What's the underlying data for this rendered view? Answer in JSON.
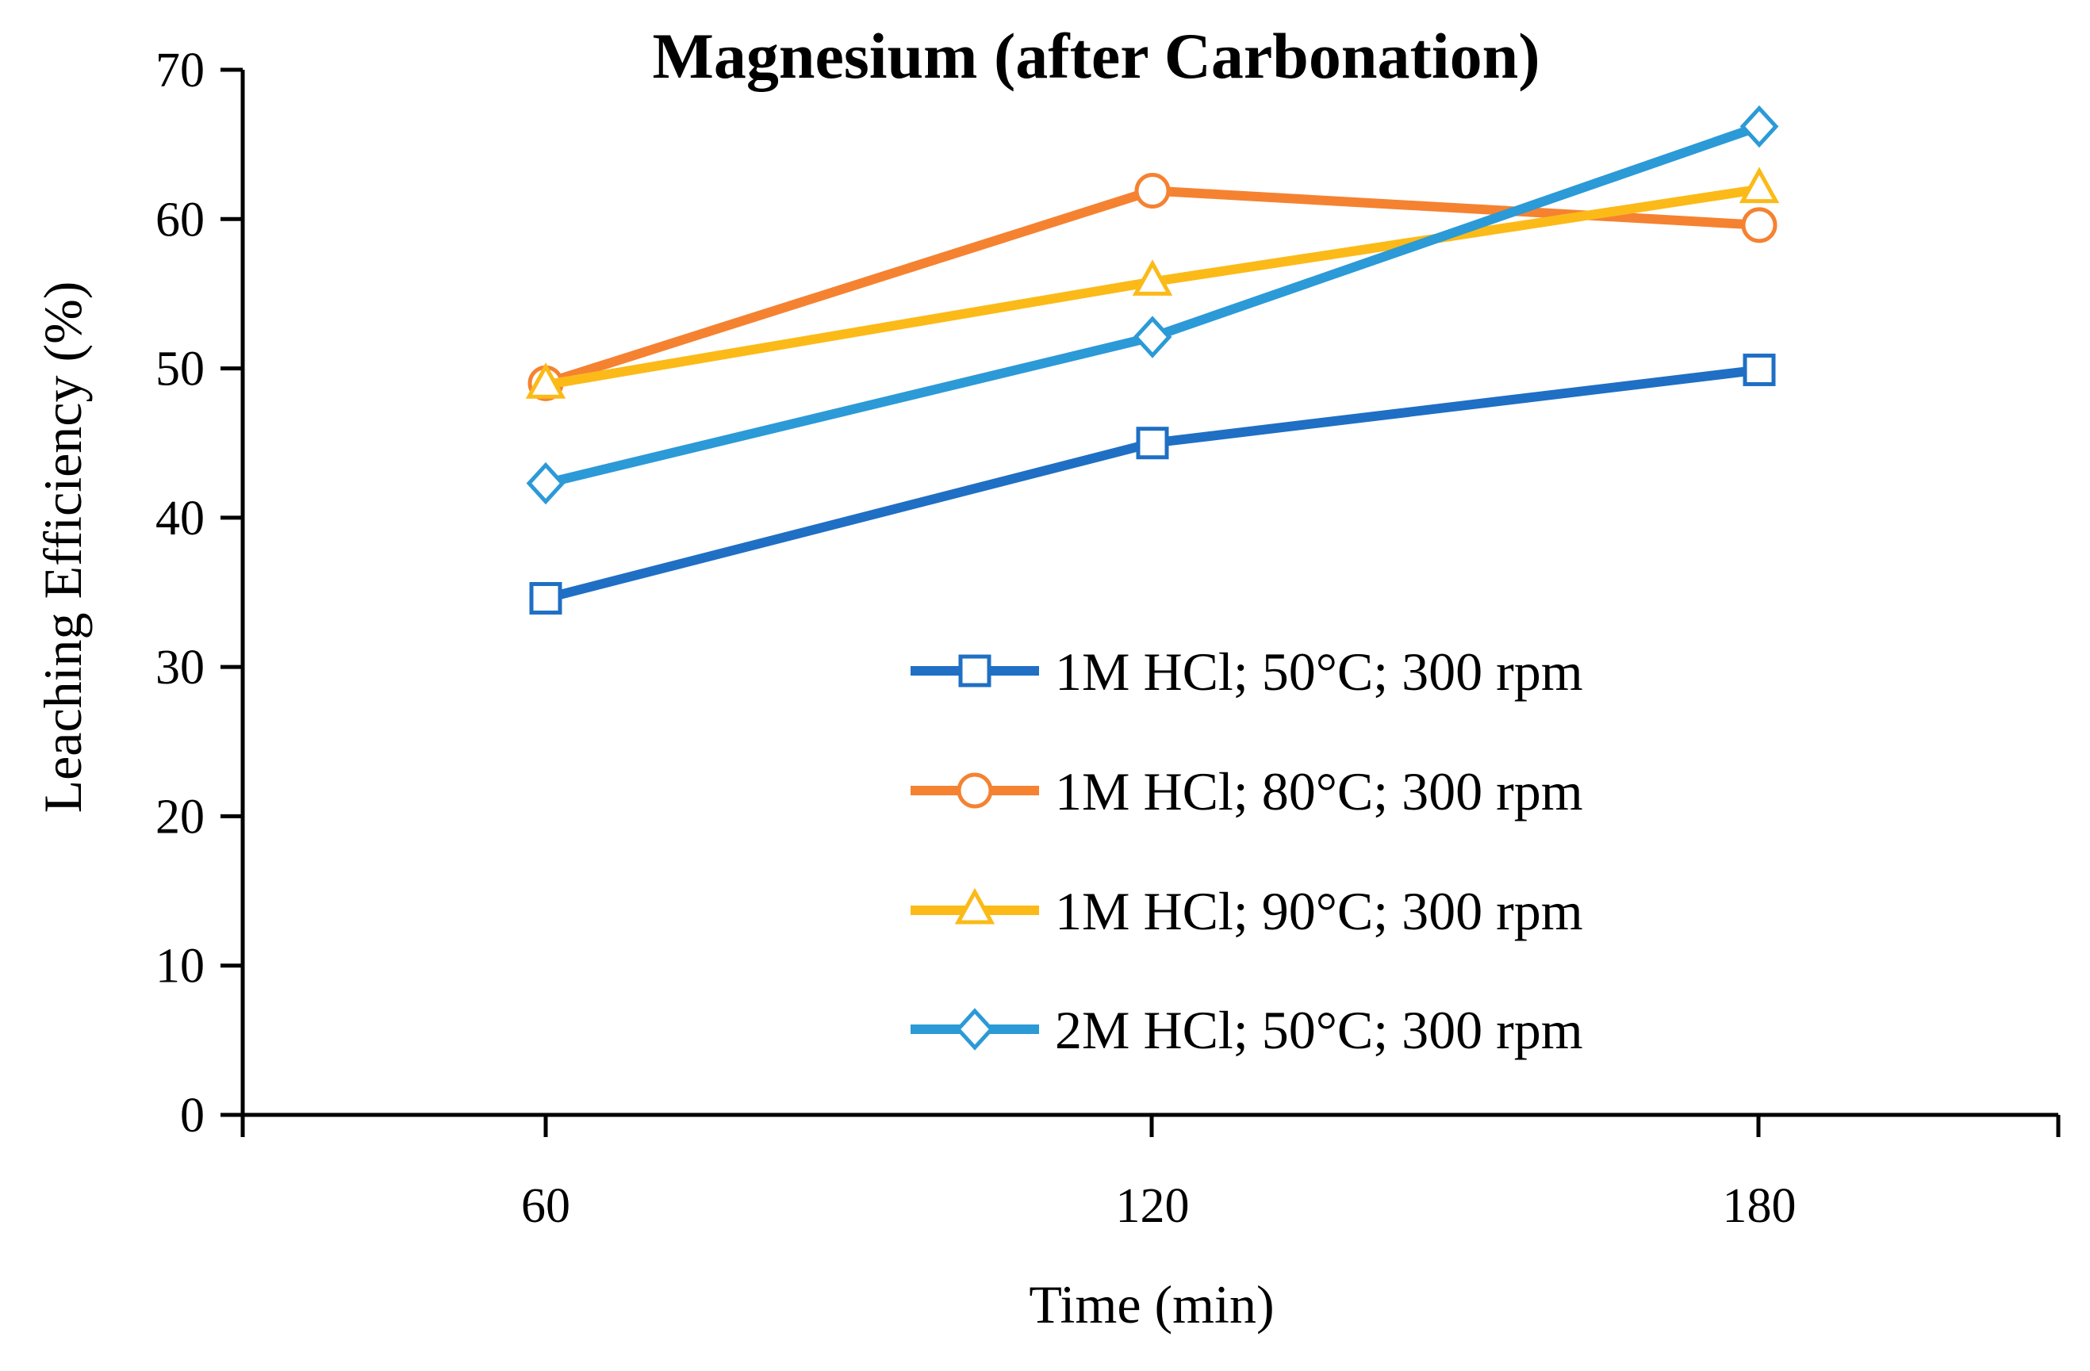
{
  "chart_data": {
    "type": "line",
    "title": "Magnesium (after Carbonation)",
    "xlabel": "Time (min)",
    "ylabel": "Leaching Efficiency (%)",
    "categories": [
      "60",
      "120",
      "180"
    ],
    "x": [
      60,
      120,
      180
    ],
    "ylim": [
      0,
      70
    ],
    "yticks": [
      "0",
      "10",
      "20",
      "30",
      "40",
      "50",
      "60",
      "70"
    ],
    "grid": false,
    "legend_position": "bottom-right",
    "series": [
      {
        "name": "1M HCl; 50°C; 300 rpm",
        "color": "#1F6FC4",
        "marker": "square",
        "values": [
          34.6,
          45.0,
          49.9
        ]
      },
      {
        "name": "1M HCl; 80°C; 300 rpm",
        "color": "#F58231",
        "marker": "circle",
        "values": [
          49.0,
          61.9,
          59.6
        ]
      },
      {
        "name": "1M HCl; 90°C; 300 rpm",
        "color": "#FBBA18",
        "marker": "triangle",
        "values": [
          48.9,
          55.8,
          62.0
        ]
      },
      {
        "name": "2M HCl; 50°C; 300 rpm",
        "color": "#2B9AD7",
        "marker": "diamond",
        "values": [
          42.3,
          52.1,
          66.2
        ]
      }
    ]
  }
}
